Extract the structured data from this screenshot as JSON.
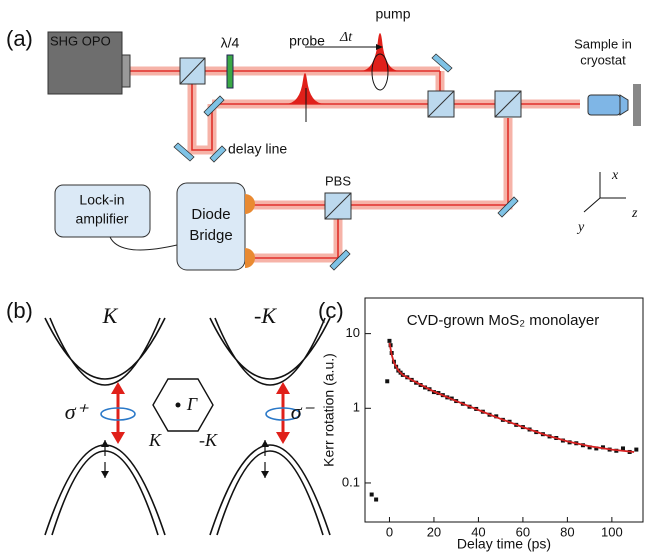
{
  "panel_a": {
    "label": "(a)",
    "laser": "SHG OPO",
    "waveplate": "λ/4",
    "probe": "probe",
    "delay": "Δt",
    "pump": "pump",
    "sample": [
      "Sample in",
      "cryostat"
    ],
    "delay_line": "delay line",
    "pbs": "PBS",
    "lockin": [
      "Lock-in",
      "amplifier"
    ],
    "bridge": [
      "Diode",
      "Bridge"
    ],
    "axis_x": "x",
    "axis_y": "y",
    "axis_z": "z"
  },
  "panel_b": {
    "label": "(b)",
    "valley_left": "K",
    "valley_right": "-K",
    "sigma_plus": "σ⁺",
    "sigma_minus": "σ⁻",
    "gamma": "Γ",
    "corner_left": "K",
    "corner_right": "-K"
  },
  "chart_data": {
    "type": "scatter",
    "panel_label": "(c)",
    "title": "CVD-grown MoS₂ monolayer",
    "x_label": "Delay time (ps)",
    "y_label": "Kerr rotation (a.u.)",
    "y_scale": "log",
    "xlim": [
      -11,
      114
    ],
    "ylim": [
      0.03,
      30
    ],
    "xticks": [
      0,
      20,
      40,
      60,
      80,
      100
    ],
    "yticks": [
      0.1,
      1,
      10
    ],
    "series": [
      {
        "type": "scatter",
        "color": "#111111",
        "x": [
          -8,
          -6,
          -1,
          0,
          0.5,
          1,
          2,
          3,
          4,
          5,
          6,
          8,
          10,
          12,
          14,
          16,
          18,
          20,
          22,
          24,
          26,
          28,
          30,
          33,
          36,
          39,
          42,
          45,
          48,
          51,
          54,
          57,
          60,
          63,
          66,
          69,
          72,
          75,
          78,
          81,
          84,
          87,
          90,
          93,
          96,
          99,
          102,
          105,
          108,
          111
        ],
        "values": [
          0.07,
          0.06,
          2.3,
          8,
          7,
          5.5,
          4.2,
          3.6,
          3.2,
          3.0,
          2.8,
          2.6,
          2.4,
          2.2,
          2.05,
          1.9,
          1.8,
          1.65,
          1.6,
          1.5,
          1.4,
          1.35,
          1.25,
          1.15,
          1.05,
          0.98,
          0.9,
          0.82,
          0.78,
          0.7,
          0.66,
          0.6,
          0.56,
          0.52,
          0.48,
          0.45,
          0.42,
          0.4,
          0.37,
          0.35,
          0.34,
          0.32,
          0.3,
          0.29,
          0.3,
          0.28,
          0.27,
          0.29,
          0.26,
          0.28
        ]
      },
      {
        "type": "line",
        "color": "#d62020",
        "x": [
          0,
          1,
          2,
          4,
          6,
          10,
          15,
          20,
          30,
          40,
          50,
          60,
          70,
          80,
          90,
          100,
          110
        ],
        "values": [
          7.5,
          5.2,
          4.1,
          3.2,
          2.8,
          2.4,
          2.0,
          1.68,
          1.25,
          0.95,
          0.72,
          0.56,
          0.44,
          0.36,
          0.31,
          0.28,
          0.26
        ]
      }
    ]
  }
}
